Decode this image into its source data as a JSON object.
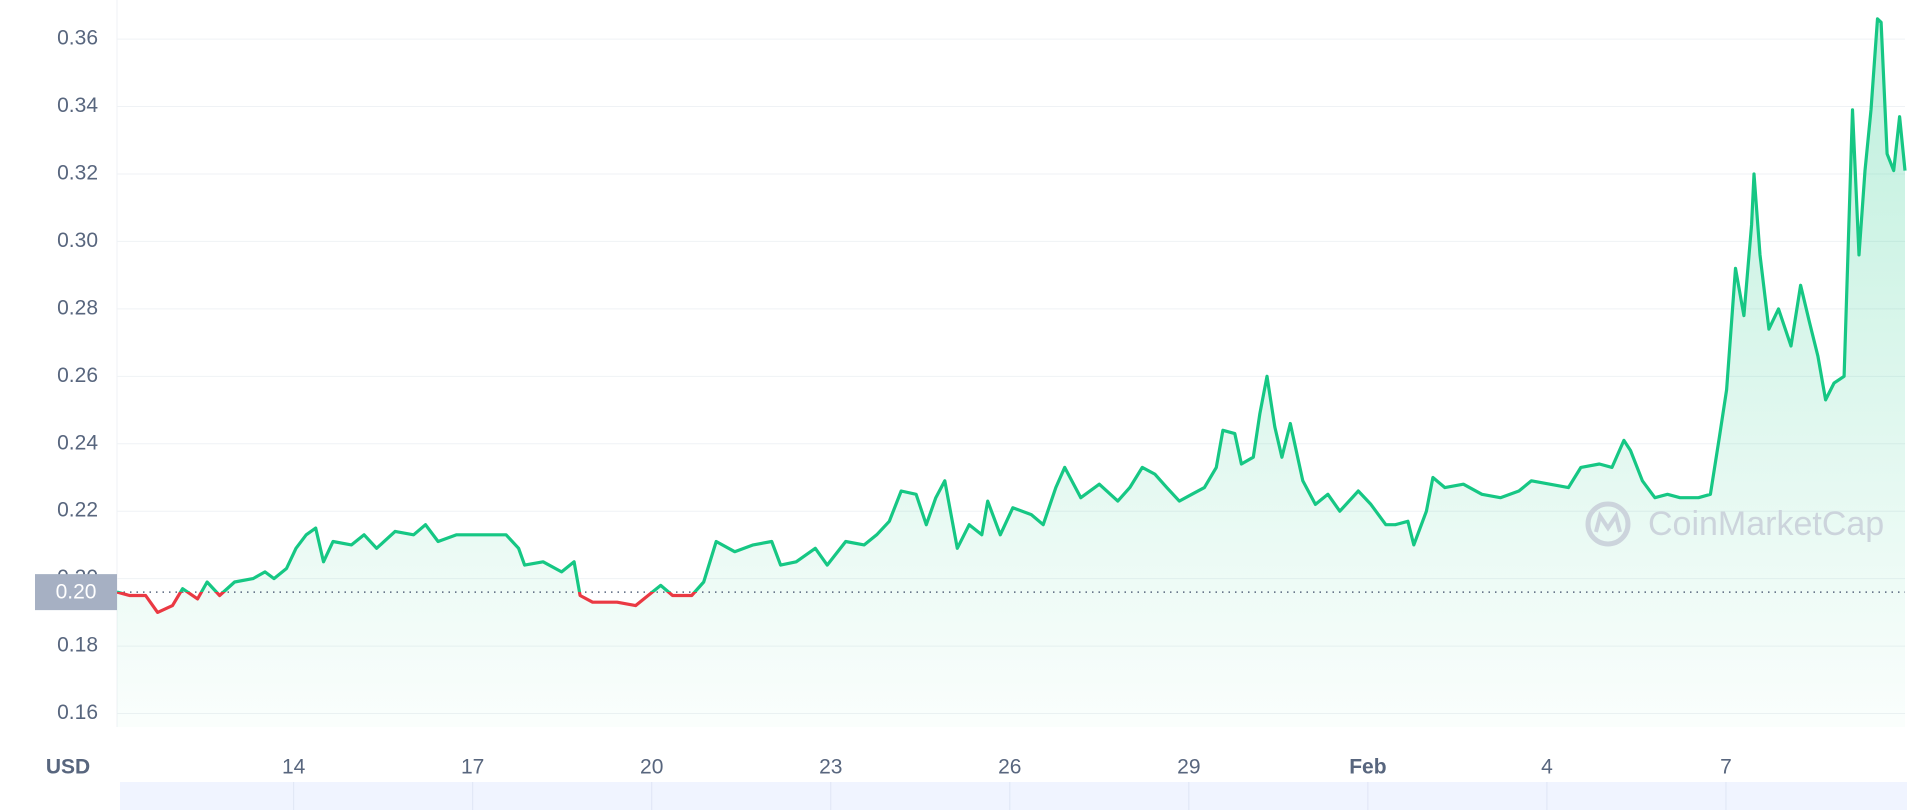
{
  "chart_data": {
    "type": "line",
    "unit_label": "USD",
    "watermark": "CoinMarketCap",
    "current_price": {
      "value": 0.196,
      "label": "0.20"
    },
    "up_color": "#16c784",
    "down_color": "#ea3943",
    "grid": true,
    "xlim": [
      11.04,
      41.0
    ],
    "xticks": [
      14,
      17,
      20,
      23,
      26,
      29,
      {
        "value": 32,
        "label": "Feb"
      },
      {
        "value": 35,
        "label": "4"
      },
      {
        "value": 38,
        "label": "7"
      }
    ],
    "ylim": [
      0.156,
      0.3716
    ],
    "yticks": [
      {
        "value": 0.16,
        "label": "0.16"
      },
      {
        "value": 0.18,
        "label": "0.18"
      },
      {
        "value": 0.2,
        "label": "0.20"
      },
      {
        "value": 0.22,
        "label": "0.22"
      },
      {
        "value": 0.24,
        "label": "0.24"
      },
      {
        "value": 0.26,
        "label": "0.26"
      },
      {
        "value": 0.28,
        "label": "0.28"
      },
      {
        "value": 0.3,
        "label": "0.30"
      },
      {
        "value": 0.32,
        "label": "0.32"
      },
      {
        "value": 0.34,
        "label": "0.34"
      },
      {
        "value": 0.36,
        "label": "0.36"
      }
    ],
    "x": [
      11.04,
      11.25,
      11.52,
      11.72,
      11.97,
      12.14,
      12.39,
      12.55,
      12.76,
      13.01,
      13.32,
      13.52,
      13.67,
      13.88,
      14.04,
      14.21,
      14.37,
      14.5,
      14.66,
      14.97,
      15.18,
      15.39,
      15.7,
      16.01,
      16.21,
      16.42,
      16.73,
      17.15,
      17.56,
      17.77,
      17.87,
      18.18,
      18.49,
      18.7,
      18.8,
      19.01,
      19.42,
      19.73,
      19.94,
      20.15,
      20.35,
      20.67,
      20.87,
      21.08,
      21.39,
      21.7,
      22.01,
      22.16,
      22.42,
      22.74,
      22.94,
      23.25,
      23.56,
      23.77,
      23.98,
      24.18,
      24.43,
      24.6,
      24.76,
      24.91,
      25.12,
      25.32,
      25.53,
      25.63,
      25.84,
      26.05,
      26.36,
      26.56,
      26.77,
      26.92,
      27.19,
      27.5,
      27.81,
      28.01,
      28.22,
      28.43,
      28.63,
      28.84,
      29.05,
      29.26,
      29.46,
      29.57,
      29.77,
      29.88,
      30.08,
      30.19,
      30.31,
      30.44,
      30.56,
      30.7,
      30.91,
      31.12,
      31.33,
      31.53,
      31.84,
      32.05,
      32.3,
      32.46,
      32.67,
      32.77,
      32.98,
      33.09,
      33.29,
      33.6,
      33.91,
      34.22,
      34.53,
      34.74,
      35.05,
      35.36,
      35.57,
      35.88,
      36.09,
      36.29,
      36.4,
      36.6,
      36.81,
      37.02,
      37.23,
      37.54,
      37.74,
      37.89,
      38.01,
      38.16,
      38.3,
      38.43,
      38.47,
      38.57,
      38.72,
      38.88,
      39.09,
      39.25,
      39.4,
      39.54,
      39.67,
      39.81,
      39.98,
      40.12,
      40.23,
      40.33,
      40.43,
      40.54,
      40.6,
      40.7,
      40.81,
      40.91,
      41.0
    ],
    "values": [
      0.196,
      0.195,
      0.195,
      0.19,
      0.192,
      0.197,
      0.194,
      0.199,
      0.195,
      0.199,
      0.2,
      0.202,
      0.2,
      0.203,
      0.209,
      0.213,
      0.215,
      0.205,
      0.211,
      0.21,
      0.213,
      0.209,
      0.214,
      0.213,
      0.216,
      0.211,
      0.213,
      0.213,
      0.213,
      0.209,
      0.204,
      0.205,
      0.202,
      0.205,
      0.195,
      0.193,
      0.193,
      0.192,
      0.195,
      0.198,
      0.195,
      0.195,
      0.199,
      0.211,
      0.208,
      0.21,
      0.211,
      0.204,
      0.205,
      0.209,
      0.204,
      0.211,
      0.21,
      0.213,
      0.217,
      0.226,
      0.225,
      0.216,
      0.224,
      0.229,
      0.209,
      0.216,
      0.213,
      0.223,
      0.213,
      0.221,
      0.219,
      0.216,
      0.227,
      0.233,
      0.224,
      0.228,
      0.223,
      0.227,
      0.233,
      0.231,
      0.227,
      0.223,
      0.225,
      0.227,
      0.233,
      0.244,
      0.243,
      0.234,
      0.236,
      0.249,
      0.26,
      0.245,
      0.236,
      0.246,
      0.229,
      0.222,
      0.225,
      0.22,
      0.226,
      0.222,
      0.216,
      0.216,
      0.217,
      0.21,
      0.22,
      0.23,
      0.227,
      0.228,
      0.225,
      0.224,
      0.226,
      0.229,
      0.228,
      0.227,
      0.233,
      0.234,
      0.233,
      0.241,
      0.238,
      0.229,
      0.224,
      0.225,
      0.224,
      0.224,
      0.225,
      0.242,
      0.256,
      0.292,
      0.278,
      0.305,
      0.32,
      0.296,
      0.274,
      0.28,
      0.269,
      0.287,
      0.276,
      0.266,
      0.253,
      0.258,
      0.26,
      0.339,
      0.296,
      0.321,
      0.339,
      0.366,
      0.365,
      0.326,
      0.321,
      0.337,
      0.321
    ]
  }
}
